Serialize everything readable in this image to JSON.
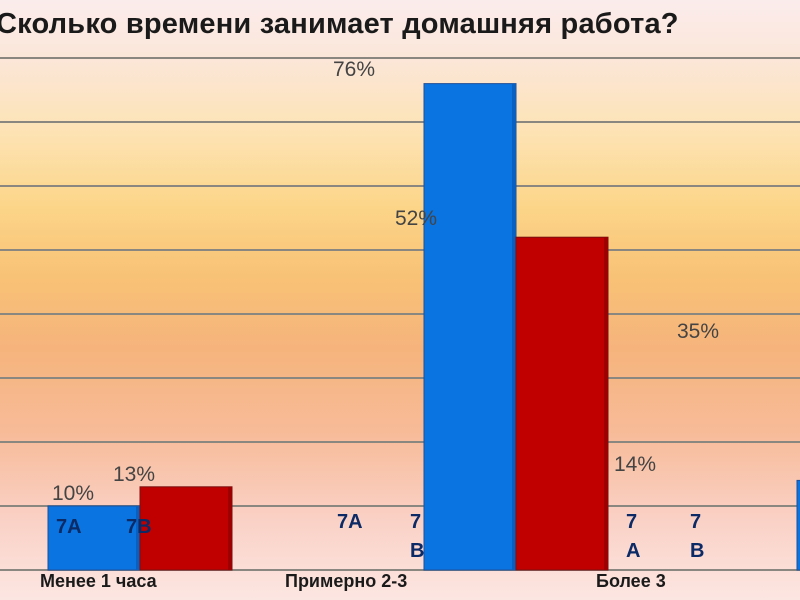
{
  "chart_data": {
    "type": "bar",
    "title": "Сколько времени занимает домашняя работа?",
    "categories": [
      "Менее 1 часа",
      "Примерно 2-3",
      "Более 3"
    ],
    "series": [
      {
        "name": "7А",
        "values": [
          10,
          76,
          null
        ]
      },
      {
        "name": "7В",
        "values": [
          13,
          52,
          null
        ]
      }
    ],
    "data_labels": [
      "10%",
      "13%",
      "76%",
      "52%",
      "35%",
      "14%"
    ],
    "inline_series_labels": [
      "7А",
      "7В",
      "7А",
      "7 В",
      "7 А",
      "7 В"
    ],
    "ylim": [
      0,
      80
    ],
    "grid": true,
    "legend": "none",
    "colors": {
      "series_a": "#0a74e0",
      "series_b": "#c00000"
    }
  }
}
